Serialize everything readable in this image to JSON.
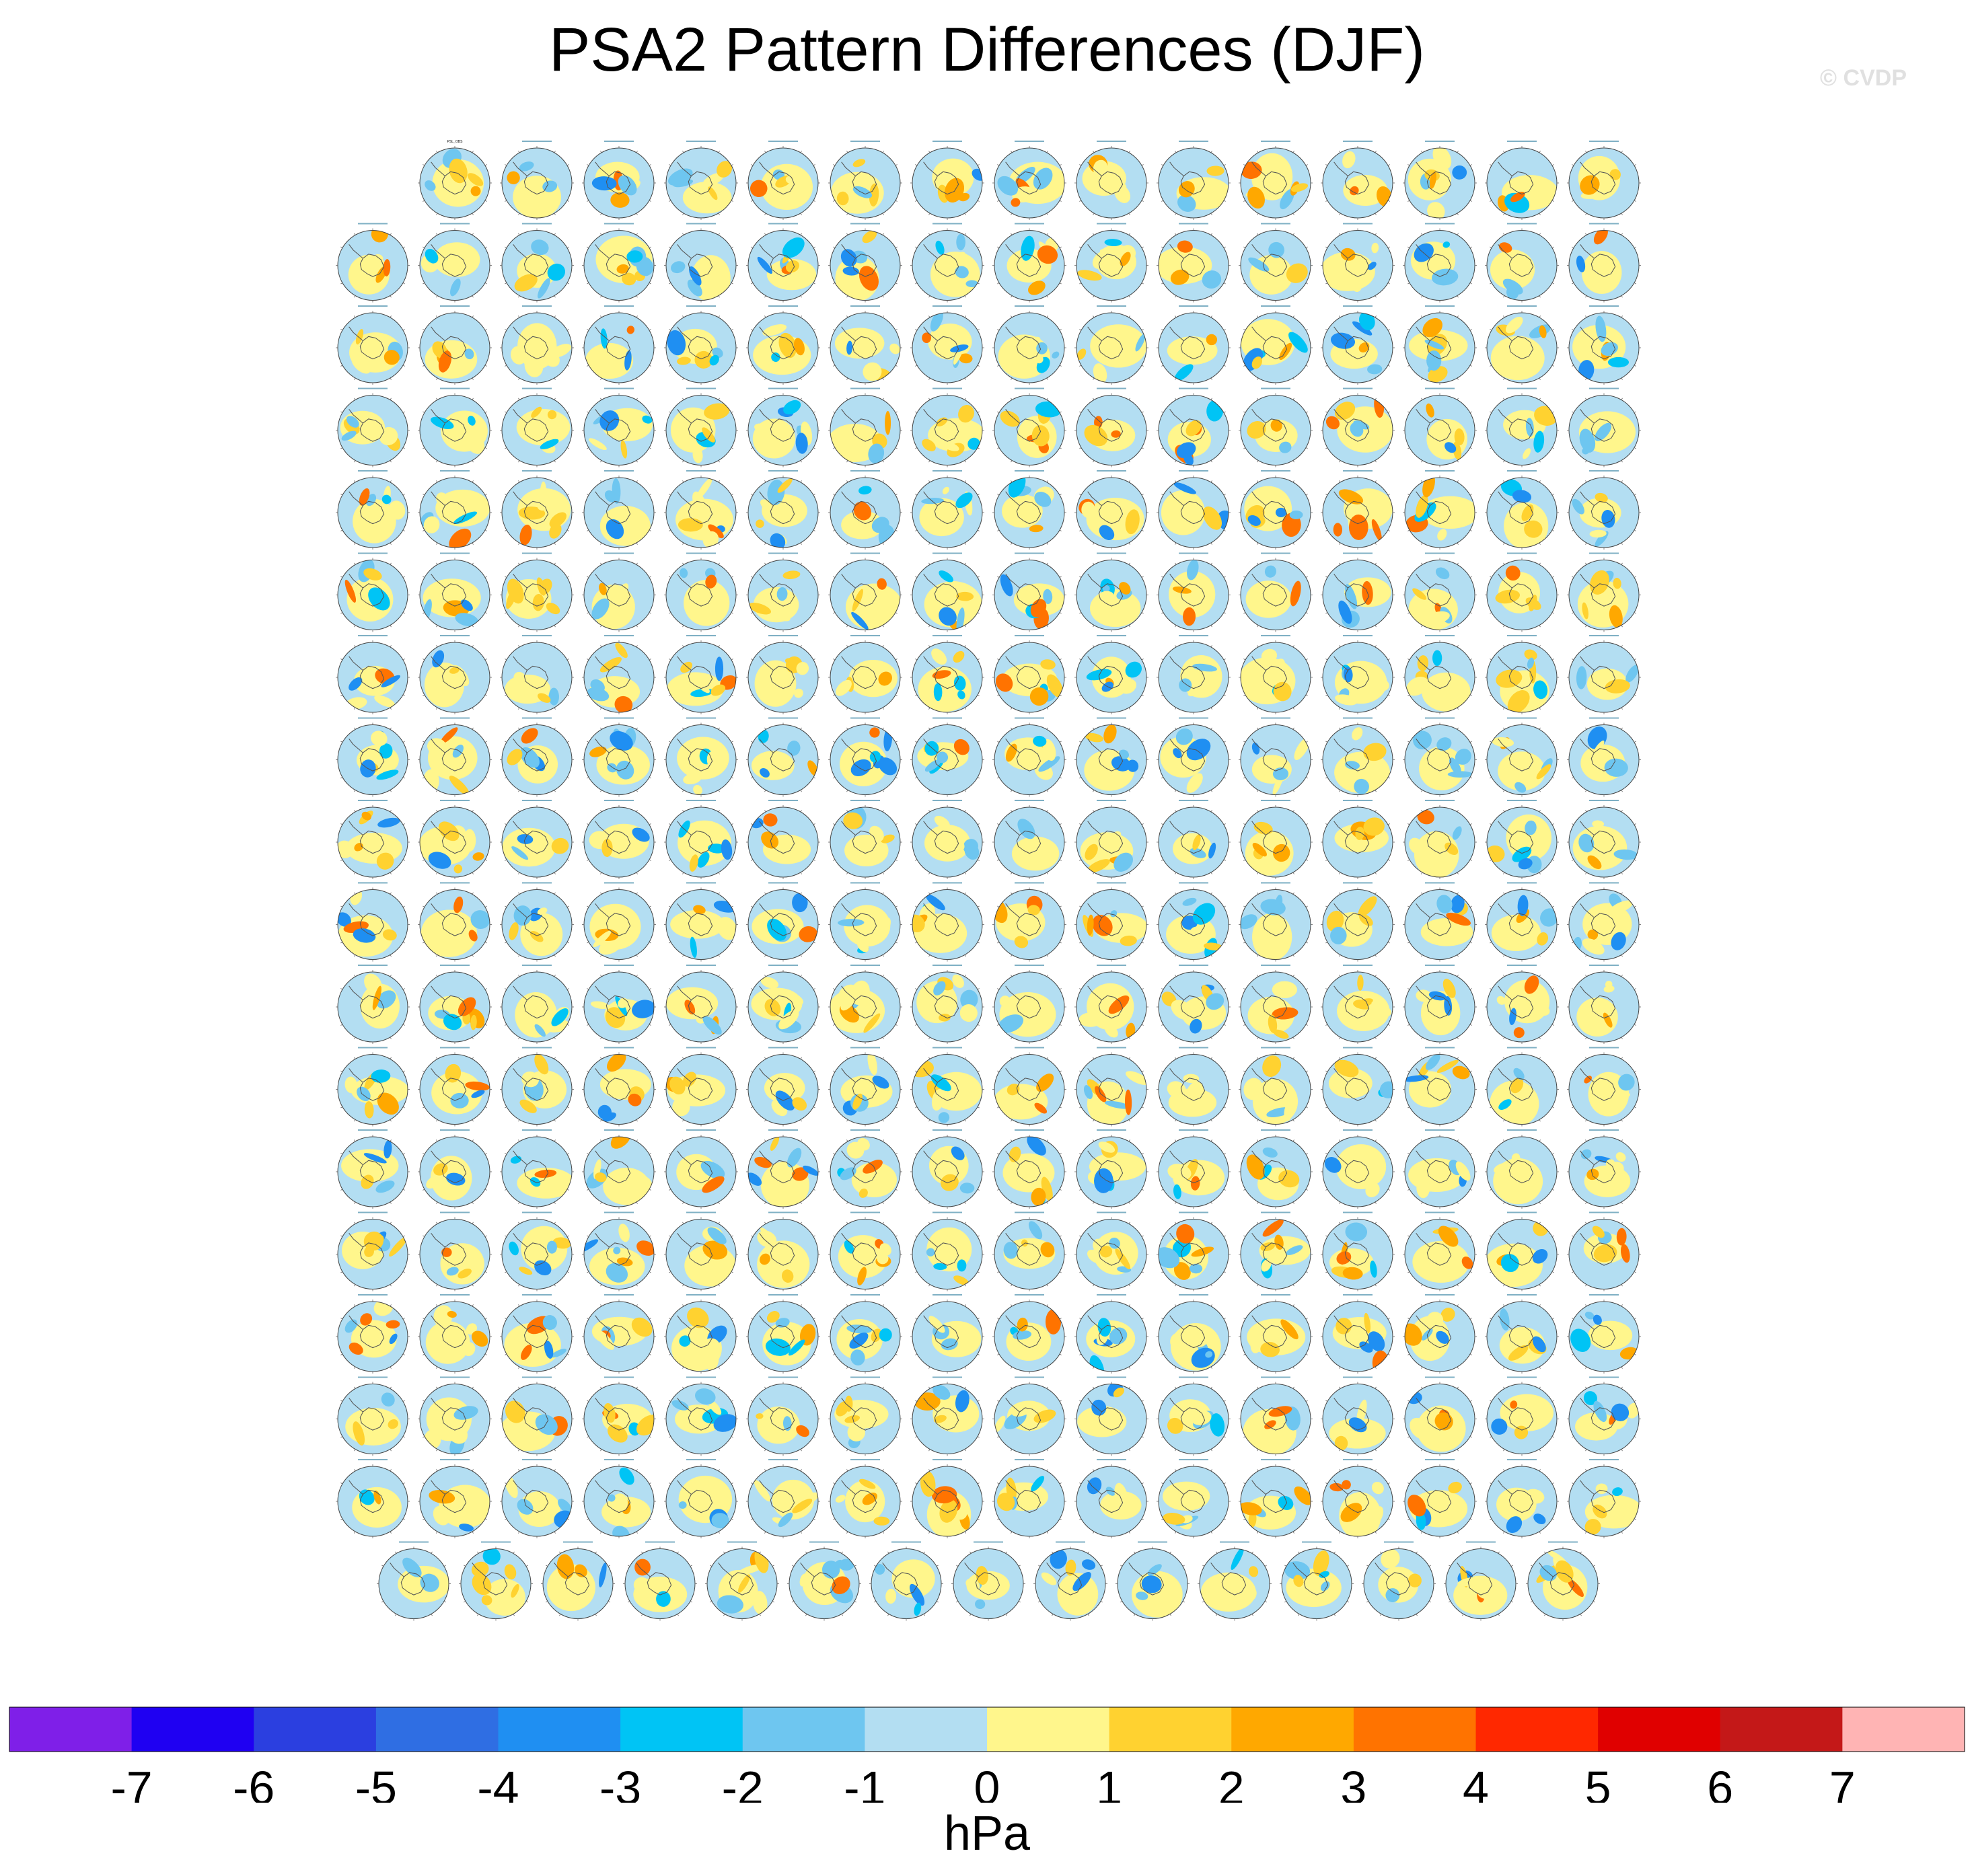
{
  "header": {
    "title": "PSA2 Pattern Differences (DJF)",
    "watermark": "© CVDP"
  },
  "chart_data": {
    "type": "heatmap",
    "title": "PSA2 Pattern Differences (DJF)",
    "description_kind": "polar stereographic maps of Southern Hemisphere sea level pressure difference (PSA2 pattern), one panel per ensemble member",
    "layout": {
      "rows": 18,
      "panels_per_row": [
        15,
        16,
        16,
        16,
        16,
        16,
        16,
        16,
        16,
        16,
        16,
        16,
        16,
        16,
        16,
        16,
        16,
        15
      ]
    },
    "panel_total": 286,
    "first_panel_title": "PSL_OBS",
    "colorbar": {
      "units": "hPa",
      "tick_labels": [
        "-7",
        "-6",
        "-5",
        "-4",
        "-3",
        "-2",
        "-1",
        "0",
        "1",
        "2",
        "3",
        "4",
        "5",
        "6",
        "7"
      ],
      "levels": [
        -7,
        -6,
        -5,
        -4,
        -3,
        -2,
        -1,
        0,
        1,
        2,
        3,
        4,
        5,
        6,
        7
      ],
      "colors": [
        "#7f1fe8",
        "#1f00f2",
        "#2b3fe0",
        "#2f6ee3",
        "#1f8ff2",
        "#00c4f5",
        "#6ec6f0",
        "#b3def2",
        "#fff68c",
        "#ffd230",
        "#ffa800",
        "#ff7300",
        "#ff2800",
        "#e00000",
        "#c41818",
        "#ffb4b4"
      ],
      "orientation": "horizontal",
      "extends": "both"
    }
  }
}
